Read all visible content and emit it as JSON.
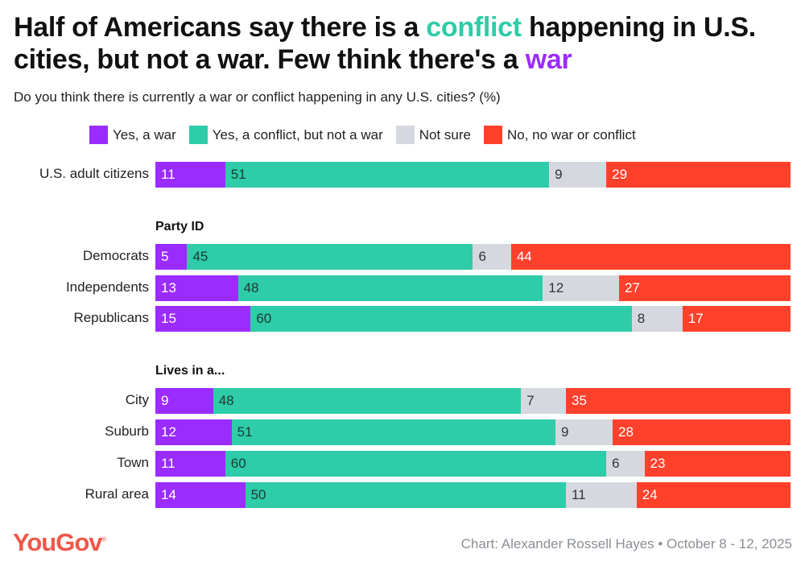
{
  "title": {
    "part1": "Half of Americans say there is a ",
    "highlight1": "conflict",
    "part2": " happening in U.S. cities, but not a war. Few think there's a ",
    "highlight2": "war"
  },
  "subtitle": "Do you think there is currently a war or conflict happening in any U.S. cities? (%)",
  "footer": {
    "logo": "YouGov",
    "credit": "Chart: Alexander Rossell Hayes • October 8 - 12, 2025"
  },
  "chart_data": {
    "type": "bar",
    "orientation": "horizontal",
    "stacked": true,
    "legend_placement": "top",
    "series": [
      {
        "name": "Yes, a war",
        "color": "#9b2cff",
        "text_color": "#ffffff"
      },
      {
        "name": "Yes, a conflict, but not a war",
        "color": "#2ecca8",
        "text_color": "#1a3a33"
      },
      {
        "name": "Not sure",
        "color": "#d5d8df",
        "text_color": "#333333"
      },
      {
        "name": "No, no war or conflict",
        "color": "#ff412c",
        "text_color": "#ffffff"
      }
    ],
    "groups": [
      {
        "label": "",
        "rows": [
          {
            "category": "U.S. adult citizens",
            "values": [
              11,
              51,
              9,
              29
            ]
          }
        ]
      },
      {
        "label": "Party ID",
        "rows": [
          {
            "category": "Democrats",
            "values": [
              5,
              45,
              6,
              44
            ]
          },
          {
            "category": "Independents",
            "values": [
              13,
              48,
              12,
              27
            ]
          },
          {
            "category": "Republicans",
            "values": [
              15,
              60,
              8,
              17
            ]
          }
        ]
      },
      {
        "label": "Lives in a...",
        "rows": [
          {
            "category": "City",
            "values": [
              9,
              48,
              7,
              35
            ]
          },
          {
            "category": "Suburb",
            "values": [
              12,
              51,
              9,
              28
            ]
          },
          {
            "category": "Town",
            "values": [
              11,
              60,
              6,
              23
            ]
          },
          {
            "category": "Rural area",
            "values": [
              14,
              50,
              11,
              24
            ]
          }
        ]
      }
    ]
  }
}
